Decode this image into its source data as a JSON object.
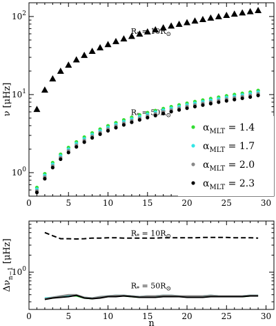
{
  "chart_data": [
    {
      "type": "scatter",
      "panel": "top",
      "xlabel": "",
      "ylabel": "ν [μHz]",
      "xlim": [
        0,
        31
      ],
      "ylim": [
        0.5,
        150
      ],
      "yscale": "log",
      "xticks": [
        0,
        5,
        10,
        15,
        20,
        25,
        30
      ],
      "xtick_labels": [
        "0",
        "5",
        "10",
        "15",
        "20",
        "25",
        "30"
      ],
      "yticks": [
        1,
        10,
        100
      ],
      "ytick_labels": [
        "10",
        "10",
        "10"
      ],
      "ytick_exps": [
        "0",
        "1",
        "2"
      ],
      "legend_position": "bottom-right",
      "legend": [
        {
          "label_main": "α",
          "label_sub": "MLT",
          "label_value": " = 1.4",
          "color": "#33dd33"
        },
        {
          "label_main": "α",
          "label_sub": "MLT",
          "label_value": " = 1.7",
          "color": "#33e6e6"
        },
        {
          "label_main": "α",
          "label_sub": "MLT",
          "label_value": " = 2.0",
          "color": "#888888"
        },
        {
          "label_main": "α",
          "label_sub": "MLT",
          "label_value": " = 2.3",
          "color": "#000000"
        }
      ],
      "annotations": [
        {
          "main": "R",
          "sub": "*",
          "text": " = 10R",
          "sym": "⊙",
          "x": 13,
          "y": 60
        },
        {
          "main": "R",
          "sub": "*",
          "text": " = 50R",
          "sym": "⊙",
          "x": 13,
          "y": 5.5
        }
      ],
      "series": [
        {
          "name": "R* = 10R⊙",
          "marker": "triangle",
          "color": "#000000",
          "x": [
            1,
            2,
            3,
            4,
            5,
            6,
            7,
            8,
            9,
            10,
            11,
            12,
            13,
            14,
            15,
            16,
            17,
            18,
            19,
            20,
            21,
            22,
            23,
            24,
            25,
            26,
            27,
            28,
            29
          ],
          "y": [
            6.5,
            11.5,
            16,
            20,
            24,
            28,
            32,
            36,
            40,
            44,
            48,
            52,
            56,
            60,
            64,
            68,
            72,
            76,
            80,
            84,
            88,
            92,
            96,
            100,
            104,
            108,
            112,
            116,
            120
          ]
        },
        {
          "name": "R* = 50R⊙",
          "marker": "circle",
          "colors": [
            "#33dd33",
            "#33e6e6",
            "#888888",
            "#000000"
          ],
          "x": [
            1,
            2,
            3,
            4,
            5,
            6,
            7,
            8,
            9,
            10,
            11,
            12,
            13,
            14,
            15,
            16,
            17,
            18,
            19,
            20,
            21,
            22,
            23,
            24,
            25,
            26,
            27,
            28,
            29
          ],
          "y": [
            0.6,
            0.9,
            1.25,
            1.6,
            1.95,
            2.3,
            2.65,
            3.0,
            3.35,
            3.7,
            4.05,
            4.4,
            4.75,
            5.1,
            5.45,
            5.8,
            6.15,
            6.5,
            6.85,
            7.2,
            7.55,
            7.9,
            8.25,
            8.6,
            8.95,
            9.3,
            9.65,
            10.0,
            10.5
          ]
        }
      ]
    },
    {
      "type": "line",
      "panel": "bottom",
      "xlabel": "n",
      "ylabel": "Δν",
      "ylabel_sub": "n−1",
      "ylabel_unit": " [μHz]",
      "xlim": [
        0,
        31
      ],
      "ylim": [
        0.22,
        8
      ],
      "yscale": "log",
      "xticks": [
        0,
        5,
        10,
        15,
        20,
        25,
        30
      ],
      "xtick_labels": [
        "0",
        "5",
        "10",
        "15",
        "20",
        "25",
        "30"
      ],
      "yticks": [
        1
      ],
      "ytick_labels": [
        "10"
      ],
      "ytick_exps": [
        "0"
      ],
      "annotations": [
        {
          "main": "R",
          "sub": "*",
          "text": " = 10R",
          "sym": "⊙",
          "x": 13,
          "y": 4.4
        },
        {
          "main": "R",
          "sub": "*",
          "text": " = 50R",
          "sym": "⊙",
          "x": 13,
          "y": 0.52
        }
      ],
      "series": [
        {
          "name": "R* = 10R⊙",
          "style": "dashed",
          "color": "#000000",
          "x": [
            2,
            3,
            4,
            5,
            6,
            7,
            8,
            9,
            10,
            11,
            12,
            13,
            14,
            15,
            16,
            17,
            18,
            19,
            20,
            21,
            22,
            23,
            24,
            25,
            26,
            27,
            28,
            29
          ],
          "y": [
            5.0,
            4.4,
            3.9,
            3.9,
            3.85,
            3.9,
            4.0,
            4.0,
            4.05,
            4.05,
            4.0,
            4.0,
            4.0,
            4.0,
            4.0,
            4.05,
            4.05,
            4.05,
            4.05,
            4.05,
            4.1,
            4.1,
            4.1,
            4.1,
            4.05,
            4.05,
            4.05,
            4.0
          ]
        },
        {
          "name": "α = 1.4",
          "style": "solid",
          "color": "#33dd33",
          "x": [
            2,
            3,
            4,
            5,
            6,
            7,
            8,
            9,
            10,
            11,
            12,
            13,
            14,
            15,
            16,
            17,
            18,
            19,
            20,
            21,
            22,
            23,
            24,
            25,
            26,
            27,
            28,
            29
          ],
          "y": [
            0.34,
            0.35,
            0.37,
            0.38,
            0.38,
            0.35,
            0.34,
            0.36,
            0.37,
            0.38,
            0.38,
            0.37,
            0.36,
            0.37,
            0.37,
            0.38,
            0.38,
            0.37,
            0.37,
            0.37,
            0.37,
            0.38,
            0.37,
            0.37,
            0.37,
            0.37,
            0.38,
            0.38
          ]
        },
        {
          "name": "α = 1.7",
          "style": "solid",
          "color": "#33e6e6",
          "x": [
            2,
            3,
            4,
            5,
            6,
            7,
            8,
            9,
            10,
            11,
            12,
            13,
            14,
            15,
            16,
            17,
            18,
            19,
            20,
            21,
            22,
            23,
            24,
            25,
            26,
            27,
            28,
            29
          ],
          "y": [
            0.35,
            0.36,
            0.38,
            0.39,
            0.39,
            0.36,
            0.35,
            0.37,
            0.38,
            0.39,
            0.39,
            0.38,
            0.37,
            0.38,
            0.38,
            0.39,
            0.39,
            0.38,
            0.38,
            0.38,
            0.38,
            0.39,
            0.38,
            0.38,
            0.38,
            0.38,
            0.39,
            0.39
          ]
        },
        {
          "name": "α = 2.0",
          "style": "solid",
          "color": "#888888",
          "x": [
            2,
            3,
            4,
            5,
            6,
            7,
            8,
            9,
            10,
            11,
            12,
            13,
            14,
            15,
            16,
            17,
            18,
            19,
            20,
            21,
            22,
            23,
            24,
            25,
            26,
            27,
            28,
            29
          ],
          "y": [
            0.34,
            0.36,
            0.38,
            0.4,
            0.4,
            0.36,
            0.35,
            0.37,
            0.38,
            0.39,
            0.39,
            0.38,
            0.37,
            0.38,
            0.38,
            0.39,
            0.39,
            0.38,
            0.38,
            0.38,
            0.38,
            0.39,
            0.38,
            0.38,
            0.38,
            0.38,
            0.39,
            0.39
          ]
        },
        {
          "name": "α = 2.3",
          "style": "solid",
          "color": "#000000",
          "x": [
            2,
            3,
            4,
            5,
            6,
            7,
            8,
            9,
            10,
            11,
            12,
            13,
            14,
            15,
            16,
            17,
            18,
            19,
            20,
            21,
            22,
            23,
            24,
            25,
            26,
            27,
            28,
            29
          ],
          "y": [
            0.33,
            0.35,
            0.36,
            0.37,
            0.39,
            0.35,
            0.34,
            0.35,
            0.37,
            0.37,
            0.38,
            0.37,
            0.36,
            0.36,
            0.36,
            0.37,
            0.37,
            0.37,
            0.36,
            0.36,
            0.36,
            0.37,
            0.37,
            0.37,
            0.37,
            0.37,
            0.38,
            0.38
          ]
        }
      ]
    }
  ]
}
